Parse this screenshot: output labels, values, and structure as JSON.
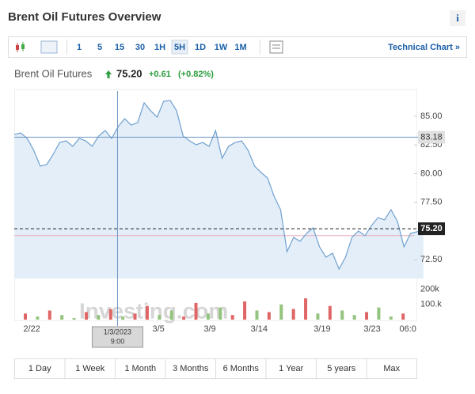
{
  "header": {
    "title": "Brent Oil Futures Overview",
    "info": "i"
  },
  "toolbar": {
    "intervals": [
      "1",
      "5",
      "15",
      "30",
      "1H",
      "5H",
      "1D",
      "1W",
      "1M"
    ],
    "selected": "5H",
    "link": "Technical Chart »"
  },
  "quote": {
    "name": "Brent Oil Futures",
    "price": "75.20",
    "change": "+0.61",
    "change_pct": "(+0.82%)"
  },
  "chart_data": {
    "type": "area",
    "color": "#6fa0d0",
    "values": [
      83.41,
      83.55,
      83.07,
      82.03,
      80.66,
      80.79,
      81.69,
      82.72,
      82.86,
      82.38,
      83.07,
      82.86,
      82.38,
      83.28,
      83.76,
      83.07,
      84.1,
      84.79,
      84.24,
      84.45,
      86.17,
      85.48,
      84.93,
      86.31,
      86.38,
      85.48,
      83.28,
      82.86,
      82.52,
      82.72,
      82.38,
      83.76,
      81.34,
      82.38,
      82.72,
      82.86,
      82.03,
      80.66,
      80.1,
      79.62,
      78.03,
      76.86,
      73.21,
      74.45,
      74.1,
      74.79,
      75.28,
      73.62,
      72.72,
      73.07,
      71.69,
      72.72,
      74.45,
      75.0,
      74.59,
      75.48,
      76.17,
      75.97,
      76.86,
      75.83,
      73.62,
      74.79,
      74.93,
      75.14
    ],
    "xlim": [
      0,
      61.5
    ],
    "xticks": [
      {
        "value": 2.7,
        "label": "2/22"
      },
      {
        "value": 22.2,
        "label": "3/5"
      },
      {
        "value": 30.1,
        "label": "3/9"
      },
      {
        "value": 37.7,
        "label": "3/14"
      },
      {
        "value": 47.4,
        "label": "3/19"
      },
      {
        "value": 55.1,
        "label": "3/23"
      },
      {
        "value": 60.6,
        "label": "06:0"
      }
    ],
    "ylim": [
      70.5,
      87.5
    ],
    "yticks": [
      {
        "value": 85,
        "label": "85.00"
      },
      {
        "value": 82.5,
        "label": "82.50"
      },
      {
        "value": 80,
        "label": "80.00"
      },
      {
        "value": 77.5,
        "label": "77.50"
      },
      {
        "value": 72.5,
        "label": "72.50"
      }
    ],
    "crosshair": {
      "x": 15.9,
      "y": 83.18,
      "x_label": [
        "1/3/2023",
        "9:00"
      ],
      "y_label": "83.18"
    },
    "last": {
      "value": 75.2,
      "label": "75.20"
    },
    "prev_close": 74.6,
    "volume": {
      "values": [
        40000,
        20000,
        60000,
        30000,
        10000,
        50000,
        30000,
        70000,
        20000,
        40000,
        90000,
        30000,
        60000,
        20000,
        110000,
        40000,
        80000,
        30000,
        120000,
        60000,
        50000,
        100000,
        70000,
        140000,
        40000,
        90000,
        60000,
        30000,
        50000,
        80000,
        20000,
        40000
      ],
      "colors": [
        "#e06666",
        "#93c47d",
        "#e06666",
        "#93c47d",
        "#93c47d",
        "#e06666",
        "#93c47d",
        "#e06666",
        "#93c47d",
        "#e06666",
        "#e06666",
        "#93c47d",
        "#93c47d",
        "#e06666",
        "#e06666",
        "#93c47d",
        "#93c47d",
        "#e06666",
        "#e06666",
        "#93c47d",
        "#e06666",
        "#93c47d",
        "#e06666",
        "#e06666",
        "#93c47d",
        "#e06666",
        "#93c47d",
        "#93c47d",
        "#e06666",
        "#93c47d",
        "#93c47d",
        "#e06666"
      ],
      "ylim": [
        0,
        250000
      ],
      "yticks": [
        {
          "value": 200000,
          "label": "200k"
        },
        {
          "value": 100000,
          "label": "100.k"
        }
      ]
    },
    "watermark": "Investing.com"
  },
  "ranges": [
    "1 Day",
    "1 Week",
    "1 Month",
    "3 Months",
    "6 Months",
    "1 Year",
    "5 years",
    "Max"
  ]
}
